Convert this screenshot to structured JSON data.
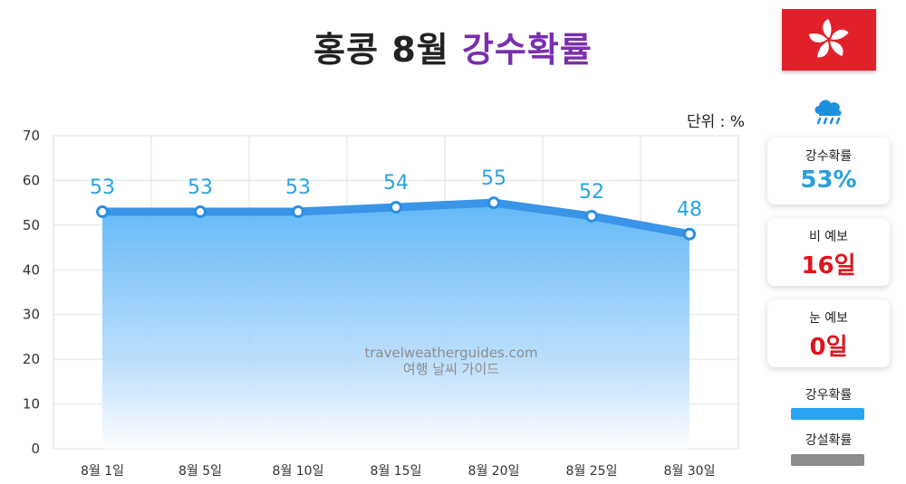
{
  "header": {
    "title_prefix": "홍콩 8월",
    "title_highlight": "강수확률"
  },
  "unit_label": "단위 : %",
  "watermark": {
    "line1": "travelweatherguides.com",
    "line2": "여행 날씨 가이드"
  },
  "icons": {
    "flag": "hong-kong-flag-icon",
    "weather": "rain-cloud-icon"
  },
  "summary_cards": [
    {
      "label": "강수확률",
      "value": "53%",
      "color": "#2a9fdc"
    },
    {
      "label": "비 예보",
      "value": "16일",
      "color": "#e0141e"
    },
    {
      "label": "눈 예보",
      "value": "0일",
      "color": "#e0141e"
    }
  ],
  "legend": [
    {
      "label": "강우확률",
      "color": "#27a4f0"
    },
    {
      "label": "강설확률",
      "color": "#8c8c8c"
    }
  ],
  "chart_data": {
    "type": "area",
    "categories": [
      "8월 1일",
      "8월 5일",
      "8월 10일",
      "8월 15일",
      "8월 20일",
      "8월 25일",
      "8월 30일"
    ],
    "series": [
      {
        "name": "강우확률",
        "values": [
          53,
          53,
          53,
          54,
          55,
          52,
          48
        ],
        "color": "#3a94e8"
      }
    ],
    "ylim": [
      0,
      70
    ],
    "yticks": [
      0,
      10,
      20,
      30,
      40,
      50,
      60,
      70
    ],
    "grid": true,
    "legend_position": "right"
  }
}
